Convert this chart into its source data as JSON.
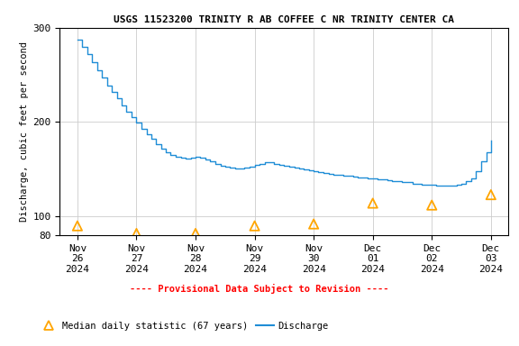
{
  "title": "USGS 11523200 TRINITY R AB COFFEE C NR TRINITY CENTER CA",
  "ylabel": "Discharge, cubic feet per second",
  "ylim": [
    80,
    300
  ],
  "bg_color": "#ffffff",
  "grid_color": "#cccccc",
  "discharge_color": "#1f8dd6",
  "median_color": "#ffa500",
  "provisional_color": "#ff0000",
  "discharge_x": [
    0,
    0.08,
    0.17,
    0.25,
    0.33,
    0.42,
    0.5,
    0.58,
    0.67,
    0.75,
    0.83,
    0.92,
    1.0,
    1.08,
    1.17,
    1.25,
    1.33,
    1.42,
    1.5,
    1.58,
    1.67,
    1.75,
    1.83,
    1.92,
    2.0,
    2.08,
    2.17,
    2.25,
    2.33,
    2.42,
    2.5,
    2.58,
    2.67,
    2.75,
    2.83,
    2.92,
    3.0,
    3.08,
    3.17,
    3.25,
    3.33,
    3.42,
    3.5,
    3.58,
    3.67,
    3.75,
    3.83,
    3.92,
    4.0,
    4.08,
    4.17,
    4.25,
    4.33,
    4.42,
    4.5,
    4.58,
    4.67,
    4.75,
    4.83,
    4.92,
    5.0,
    5.08,
    5.17,
    5.25,
    5.33,
    5.42,
    5.5,
    5.58,
    5.67,
    5.75,
    5.83,
    5.92,
    6.0,
    6.08,
    6.17,
    6.25,
    6.33,
    6.42,
    6.5,
    6.58,
    6.67,
    6.75,
    6.83,
    6.92,
    7.0
  ],
  "discharge_y": [
    287,
    280,
    272,
    263,
    255,
    247,
    239,
    232,
    225,
    218,
    211,
    205,
    199,
    193,
    187,
    182,
    177,
    172,
    168,
    165,
    163,
    162,
    161,
    162,
    163,
    162,
    160,
    158,
    156,
    154,
    153,
    152,
    151,
    151,
    152,
    153,
    155,
    156,
    157,
    157,
    156,
    155,
    154,
    153,
    152,
    151,
    150,
    149,
    148,
    147,
    146,
    145,
    144,
    144,
    143,
    143,
    142,
    141,
    141,
    140,
    140,
    139,
    139,
    138,
    137,
    137,
    136,
    136,
    135,
    135,
    134,
    134,
    134,
    133,
    133,
    133,
    133,
    134,
    135,
    137,
    140,
    148,
    158,
    168,
    180
  ],
  "median_x": [
    0,
    1,
    2,
    3,
    4,
    5,
    6,
    7
  ],
  "median_y": [
    90,
    82,
    82,
    90,
    92,
    114,
    112,
    123
  ],
  "provisional_text": "---- Provisional Data Subject to Revision ----",
  "legend_median": "Median daily statistic (67 years)",
  "legend_discharge": "Discharge",
  "tick_labels": [
    "Nov\n26\n2024",
    "Nov\n27\n2024",
    "Nov\n28\n2024",
    "Nov\n29\n2024",
    "Nov\n30\n2024",
    "Dec\n01\n2024",
    "Dec\n02\n2024",
    "Dec\n03\n2024"
  ]
}
